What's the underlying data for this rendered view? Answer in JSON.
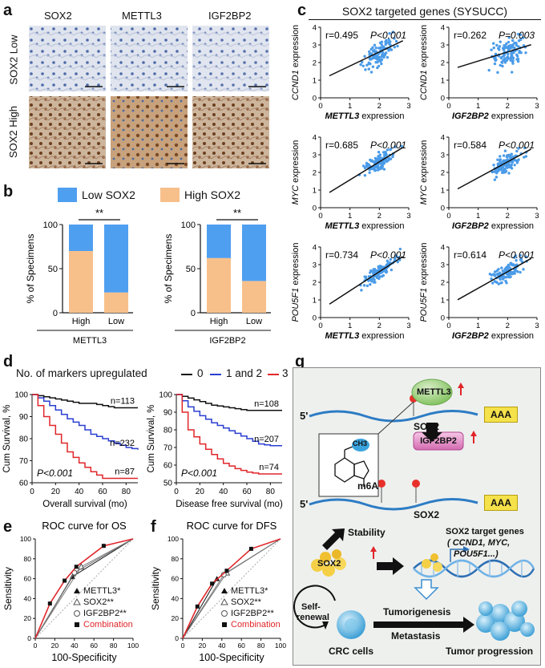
{
  "panel_letters": {
    "a": "a",
    "b": "b",
    "c": "c",
    "d": "d",
    "e": "e",
    "f": "f",
    "g": "g"
  },
  "panel_a": {
    "columns": [
      "SOX2",
      "METTL3",
      "IGF2BP2"
    ],
    "rows": [
      "SOX2 Low",
      "SOX2 High"
    ],
    "colors": {
      "low_bg": "#d6dce8",
      "low_stain": "#3b5a9a",
      "high_bg": "#c9b29a",
      "high_stain": "#7a4a26"
    }
  },
  "panel_b": {
    "legend": [
      "Low SOX2",
      "High SOX2"
    ],
    "colors": {
      "low": "#4f9ff0",
      "high": "#f7c08b"
    },
    "ylabel": "% of Specimens",
    "sig": "**",
    "charts": [
      {
        "xlabel": "METTL3",
        "categories": [
          "High",
          "Low"
        ],
        "high_pct": [
          70,
          23
        ]
      },
      {
        "xlabel": "IGF2BP2",
        "categories": [
          "High",
          "Low"
        ],
        "high_pct": [
          62,
          36
        ]
      }
    ]
  },
  "panel_c": {
    "title": "SOX2 targeted genes (SYSUCC)",
    "plots": [
      {
        "ylabel_gene": "CCND1",
        "ylabel_rest": " expression",
        "xlabel_gene": "METTL3",
        "xlabel_rest": " expression",
        "r": "r=0.495",
        "p": "P<0.001",
        "x_axis": "left"
      },
      {
        "ylabel_gene": "CCND1",
        "ylabel_rest": " expression",
        "xlabel_gene": "IGF2BP2",
        "xlabel_rest": " expression",
        "r": "r=0.262",
        "p": "P=0.003",
        "x_axis": "right"
      },
      {
        "ylabel_gene": "MYC",
        "ylabel_rest": " expression",
        "xlabel_gene": "METTL3",
        "xlabel_rest": " expression",
        "r": "r=0.685",
        "p": "P<0.001",
        "x_axis": "left"
      },
      {
        "ylabel_gene": "MYC",
        "ylabel_rest": " expression",
        "xlabel_gene": "IGF2BP2",
        "xlabel_rest": " expression",
        "r": "r=0.584",
        "p": "P<0.001",
        "x_axis": "right"
      },
      {
        "ylabel_gene": "POU5F1",
        "ylabel_rest": " expression",
        "xlabel_gene": "METTL3",
        "xlabel_rest": " expression",
        "r": "r=0.734",
        "p": "P<0.001",
        "x_axis": "left"
      },
      {
        "ylabel_gene": "POU5F1",
        "ylabel_rest": " expression",
        "xlabel_gene": "IGF2BP2",
        "xlabel_rest": " expression",
        "r": "r=0.614",
        "p": "P<0.001",
        "x_axis": "right"
      }
    ],
    "point_color": "#4a9be8"
  },
  "panel_d": {
    "legend_title": "No. of markers upregulated",
    "legend": [
      {
        "label": "0",
        "color": "#111111"
      },
      {
        "label": "1 and 2",
        "color": "#2a3fd1"
      },
      {
        "label": "3",
        "color": "#e0262a"
      }
    ],
    "ylabel": "Cum Survival, %",
    "plots": [
      {
        "xlabel": "Overall survival (mo)",
        "p": "P<0.001",
        "n": [
          "n=113",
          "n=232",
          "n=87"
        ]
      },
      {
        "xlabel": "Disease free survival (mo)",
        "p": "P<0.001",
        "n": [
          "n=108",
          "n=207",
          "n=74"
        ]
      }
    ]
  },
  "panel_e": {
    "title": "ROC curve for OS",
    "ylabel": "Sensitivity",
    "xlabel": "100-Specificity",
    "legend": [
      "METTL3*",
      "SOX2**",
      "IGF2BP2**",
      "Combination"
    ]
  },
  "panel_f": {
    "title": "ROC curve for DFS",
    "ylabel": "Sensitivity",
    "xlabel": "100-Specificity",
    "legend": [
      "METTL3*",
      "SOX2**",
      "IGF2BP2**",
      "Combination"
    ]
  },
  "chart_data": [
    {
      "type": "bar",
      "panel": "b-left",
      "categories": [
        "High",
        "Low"
      ],
      "xlabel": "METTL3",
      "ylabel": "% of Specimens",
      "ylim": [
        0,
        100
      ],
      "series": [
        {
          "name": "High SOX2",
          "values": [
            70,
            23
          ]
        },
        {
          "name": "Low SOX2",
          "values": [
            30,
            77
          ]
        }
      ]
    },
    {
      "type": "bar",
      "panel": "b-right",
      "categories": [
        "High",
        "Low"
      ],
      "xlabel": "IGF2BP2",
      "ylabel": "% of Specimens",
      "ylim": [
        0,
        100
      ],
      "series": [
        {
          "name": "High SOX2",
          "values": [
            62,
            36
          ]
        },
        {
          "name": "Low SOX2",
          "values": [
            38,
            64
          ]
        }
      ]
    },
    {
      "type": "line",
      "panel": "d-left",
      "xlabel": "Overall survival (mo)",
      "ylabel": "Cum Survival, %",
      "xlim": [
        0,
        90
      ],
      "ylim": [
        60,
        100
      ],
      "series": [
        {
          "name": "0",
          "x": [
            0,
            10,
            20,
            30,
            40,
            50,
            60,
            70,
            80,
            90
          ],
          "y": [
            100,
            99,
            98,
            97,
            96,
            96,
            95,
            94,
            94,
            94
          ]
        },
        {
          "name": "1 and 2",
          "x": [
            0,
            10,
            20,
            30,
            40,
            50,
            60,
            70,
            80,
            90
          ],
          "y": [
            100,
            97,
            93,
            89,
            86,
            82,
            80,
            78,
            76,
            75
          ]
        },
        {
          "name": "3",
          "x": [
            0,
            10,
            20,
            30,
            40,
            50,
            60,
            70,
            80,
            90
          ],
          "y": [
            100,
            90,
            82,
            74,
            69,
            65,
            62,
            62,
            62,
            62
          ]
        }
      ]
    },
    {
      "type": "line",
      "panel": "d-right",
      "xlabel": "Disease free survival (mo)",
      "ylabel": "Cum Survival, %",
      "xlim": [
        0,
        90
      ],
      "ylim": [
        50,
        100
      ],
      "series": [
        {
          "name": "0",
          "x": [
            0,
            10,
            20,
            30,
            40,
            50,
            60,
            70,
            80,
            90
          ],
          "y": [
            100,
            98,
            96,
            94,
            93,
            92,
            91,
            91,
            91,
            91
          ]
        },
        {
          "name": "1 and 2",
          "x": [
            0,
            10,
            20,
            30,
            40,
            50,
            60,
            70,
            80,
            90
          ],
          "y": [
            100,
            93,
            88,
            84,
            81,
            78,
            75,
            72,
            71,
            71
          ]
        },
        {
          "name": "3",
          "x": [
            0,
            10,
            20,
            30,
            40,
            50,
            60,
            70,
            80,
            90
          ],
          "y": [
            100,
            80,
            72,
            66,
            61,
            58,
            56,
            55,
            55,
            55
          ]
        }
      ]
    },
    {
      "type": "line",
      "panel": "e",
      "title": "ROC curve for OS",
      "xlabel": "100-Specificity",
      "ylabel": "Sensitivity",
      "xlim": [
        0,
        100
      ],
      "ylim": [
        0,
        100
      ],
      "series": [
        {
          "name": "METTL3*",
          "x": [
            0,
            38,
            100
          ],
          "y": [
            0,
            62,
            100
          ]
        },
        {
          "name": "SOX2**",
          "x": [
            0,
            47,
            100
          ],
          "y": [
            0,
            72,
            100
          ]
        },
        {
          "name": "IGF2BP2**",
          "x": [
            0,
            40,
            100
          ],
          "y": [
            0,
            66,
            100
          ]
        },
        {
          "name": "Combination",
          "x": [
            0,
            15,
            30,
            42,
            70,
            100
          ],
          "y": [
            0,
            35,
            58,
            72,
            93,
            100
          ]
        }
      ]
    },
    {
      "type": "line",
      "panel": "f",
      "title": "ROC curve for DFS",
      "xlabel": "100-Specificity",
      "ylabel": "Sensitivity",
      "xlim": [
        0,
        100
      ],
      "ylim": [
        0,
        100
      ],
      "series": [
        {
          "name": "METTL3*",
          "x": [
            0,
            35,
            100
          ],
          "y": [
            0,
            60,
            100
          ]
        },
        {
          "name": "SOX2**",
          "x": [
            0,
            45,
            100
          ],
          "y": [
            0,
            66,
            100
          ]
        },
        {
          "name": "IGF2BP2**",
          "x": [
            0,
            42,
            100
          ],
          "y": [
            0,
            64,
            100
          ]
        },
        {
          "name": "Combination",
          "x": [
            0,
            15,
            30,
            45,
            70,
            100
          ],
          "y": [
            0,
            32,
            55,
            68,
            90,
            100
          ]
        }
      ]
    },
    {
      "type": "scatter",
      "panel": "c",
      "note_values": "r and P from plot labels",
      "plots": [
        {
          "x": "METTL3 expression",
          "y": "CCND1 expression",
          "r": 0.495
        },
        {
          "x": "IGF2BP2 expression",
          "y": "CCND1 expression",
          "r": 0.262
        },
        {
          "x": "METTL3 expression",
          "y": "MYC expression",
          "r": 0.685
        },
        {
          "x": "IGF2BP2 expression",
          "y": "MYC expression",
          "r": 0.584
        },
        {
          "x": "METTL3 expression",
          "y": "POU5F1 expression",
          "r": 0.734
        },
        {
          "x": "IGF2BP2 expression",
          "y": "POU5F1 expression",
          "r": 0.614
        }
      ]
    }
  ],
  "panel_g": {
    "five_prime": "5'",
    "aaa": "AAA",
    "mettl3": "METTL3",
    "sox2_mrna": "SOX2",
    "igf2bp2": "IGF2BP2",
    "m6a": "m6A",
    "ch3": "CH3",
    "stability": "Stability",
    "sox2_protein": "SOX2",
    "targets_line1": "SOX2 target genes",
    "targets_line2": "( CCND1, MYC,",
    "targets_line3": "POU5F1...)",
    "self_renewal_1": "Self-",
    "self_renewal_2": "renewal",
    "tumorigenesis": "Tumorigenesis",
    "metastasis": "Metastasis",
    "crc": "CRC cells",
    "progression": "Tumor progression"
  }
}
